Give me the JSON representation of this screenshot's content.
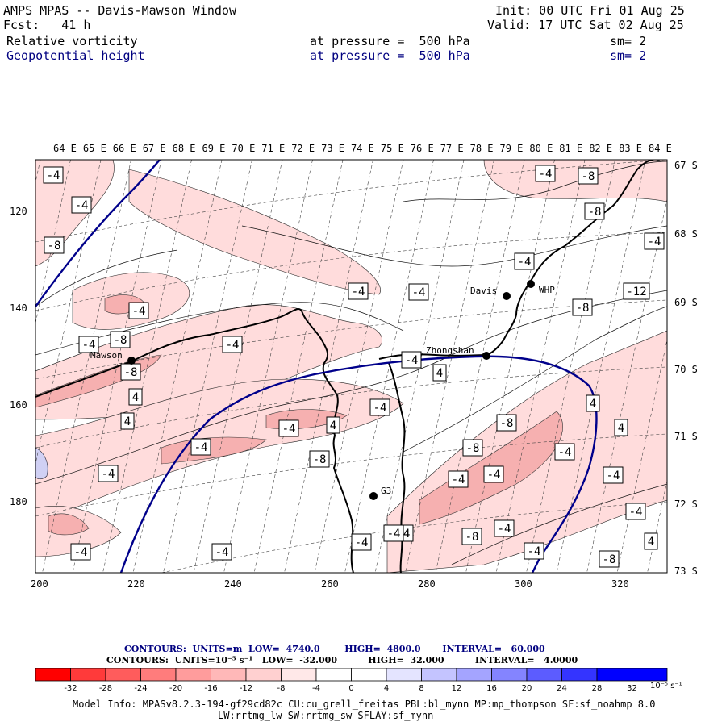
{
  "header": {
    "title": "AMPS MPAS -- Davis-Mawson Window",
    "fcst": "Fcst:   41 h",
    "init": "Init: 00 UTC Fri 01 Aug 25",
    "valid": "Valid: 17 UTC Sat 02 Aug 25",
    "field1": {
      "name": "Relative vorticity",
      "pressure": "at pressure =  500 hPa",
      "sm": "sm= 2"
    },
    "field2": {
      "name": "Geopotential height",
      "pressure": "at pressure =  500 hPa",
      "sm": "sm= 2"
    }
  },
  "map": {
    "top_lon_labels": [
      "64 E",
      "65 E",
      "66 E",
      "67 E",
      "68 E",
      "69 E",
      "70 E",
      "71 E",
      "72 E",
      "73 E",
      "74 E",
      "75 E",
      "76 E",
      "77 E",
      "78 E",
      "79 E",
      "80 E",
      "81 E",
      "82 E",
      "83 E",
      "84 E"
    ],
    "right_lat_labels": [
      "67 S",
      "68 S",
      "69 S",
      "70 S",
      "71 S",
      "72 S",
      "73 S"
    ],
    "left_axis_labels": [
      "120",
      "140",
      "160",
      "180"
    ],
    "bottom_axis_labels": [
      "200",
      "220",
      "240",
      "260",
      "280",
      "300",
      "320"
    ],
    "stations": [
      {
        "name": "Mawson"
      },
      {
        "name": "Zhongshan"
      },
      {
        "name": "Davis"
      },
      {
        "name": "WHP"
      },
      {
        "name": "G3"
      }
    ],
    "contour_labels": [
      "-4",
      "-4",
      "-8",
      "-4",
      "-8",
      "-4",
      "-4",
      "-8",
      "-4",
      "-4",
      "4",
      "4",
      "-4",
      "4",
      "-4",
      "-4",
      "-8",
      "-8",
      "-8",
      "-4",
      "-4",
      "-4",
      "-4",
      "-8",
      "-12",
      "-4",
      "-8",
      "-4",
      "-8",
      "-4",
      "-4",
      "-4",
      "-8",
      "-4",
      "-4",
      "-4",
      "-4",
      "-8",
      "-4",
      "4",
      "-4",
      "-4",
      "4",
      "4",
      "-4",
      "4"
    ],
    "colors": {
      "coast": "#000000",
      "height_contour": "#000080",
      "vorticity_neg": "#f4a0a0",
      "vorticity_pos": "#c8c8f0"
    }
  },
  "notes": {
    "line1": "CONTOURS:  UNITS=m  LOW=  4740.0        HIGH=  4800.0       INTERVAL=   60.000",
    "line2": "CONTOURS:  UNITS=10⁻⁵ s⁻¹   LOW=  -32.000          HIGH=  32.000          INTERVAL=   4.0000"
  },
  "colorbar": {
    "ticks": [
      "-32",
      "-28",
      "-24",
      "-20",
      "-16",
      "-12",
      "-8",
      "-4",
      "0",
      "4",
      "8",
      "12",
      "16",
      "20",
      "24",
      "28",
      "32"
    ],
    "colors": [
      "#ff0000",
      "#ff3a3a",
      "#ff5c5c",
      "#ff7c7c",
      "#ff9c9c",
      "#ffb8b8",
      "#ffd0d0",
      "#ffe8e8",
      "#ffffff",
      "#ffffff",
      "#e4e4ff",
      "#c4c4ff",
      "#a4a4ff",
      "#8484ff",
      "#5c5cff",
      "#3434ff",
      "#0000ff",
      "#0000ff"
    ],
    "unit": "10⁻⁵ s⁻¹"
  },
  "model_info": {
    "line1": "Model Info: MPASv8.2.3-194-gf29cd82c CU:cu_grell_freitas PBL:bl_mynn MP:mp_thompson SF:sf_noahmp 8.0",
    "line2": "LW:rrtmg_lw SW:rrtmg_sw SFLAY:sf_mynn"
  }
}
